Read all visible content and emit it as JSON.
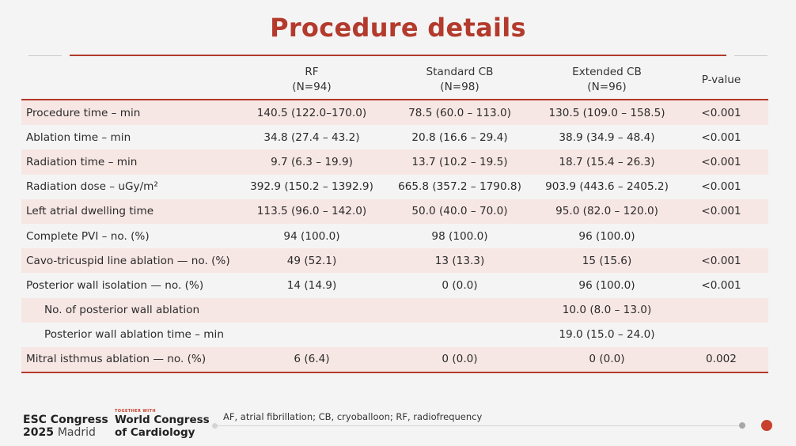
{
  "slide": {
    "title": "Procedure details",
    "footnote": "AF, atrial fibrillation; CB, cryoballoon; RF, radiofrequency"
  },
  "table": {
    "headers": [
      {
        "name": "RF",
        "n": "(N=94)"
      },
      {
        "name": "Standard CB",
        "n": "(N=98)"
      },
      {
        "name": "Extended CB",
        "n": "(N=96)"
      },
      {
        "name": "P-value",
        "n": ""
      }
    ],
    "rows": [
      {
        "label": "Procedure time – min",
        "values": [
          "140.5 (122.0–170.0)",
          "78.5 (60.0 – 113.0)",
          "130.5 (109.0 – 158.5)",
          "<0.001"
        ]
      },
      {
        "label": "Ablation time – min",
        "values": [
          "34.8 (27.4 – 43.2)",
          "20.8 (16.6 – 29.4)",
          "38.9 (34.9 – 48.4)",
          "<0.001"
        ]
      },
      {
        "label": "Radiation time – min",
        "values": [
          "9.7 (6.3 – 19.9)",
          "13.7 (10.2 – 19.5)",
          "18.7 (15.4 – 26.3)",
          "<0.001"
        ]
      },
      {
        "label": "Radiation dose – uGy/m²",
        "values": [
          "392.9 (150.2 – 1392.9)",
          "665.8 (357.2 – 1790.8)",
          "903.9 (443.6 – 2405.2)",
          "<0.001"
        ]
      },
      {
        "label": "Left atrial dwelling time",
        "values": [
          "113.5 (96.0 – 142.0)",
          "50.0 (40.0 – 70.0)",
          "95.0 (82.0 – 120.0)",
          "<0.001"
        ]
      },
      {
        "label": "Complete PVI – no. (%)",
        "values": [
          "94 (100.0)",
          "98 (100.0)",
          "96 (100.0)",
          ""
        ]
      },
      {
        "label": "Cavo-tricuspid line ablation — no. (%)",
        "values": [
          "49 (52.1)",
          "13 (13.3)",
          "15 (15.6)",
          "<0.001"
        ]
      },
      {
        "label": "Posterior wall isolation — no. (%)",
        "values": [
          "14 (14.9)",
          "0 (0.0)",
          "96 (100.0)",
          "<0.001"
        ]
      },
      {
        "label": "No. of posterior wall ablation",
        "values": [
          "",
          "",
          "10.0 (8.0 – 13.0)",
          ""
        ]
      },
      {
        "label": "Posterior wall ablation time – min",
        "values": [
          "",
          "",
          "19.0 (15.0 – 24.0)",
          ""
        ]
      },
      {
        "label": "Mitral isthmus ablation — no. (%)",
        "values": [
          "6 (6.4)",
          "0 (0.0)",
          "0 (0.0)",
          "0.002"
        ]
      }
    ]
  },
  "logo": {
    "esc_line1": "ESC Congress",
    "esc_year": "2025",
    "esc_city": "Madrid",
    "together_with": "TOGETHER WITH",
    "wc_line1": "World Congress",
    "wc_line2": "of Cardiology"
  },
  "colors": {
    "accent": "#b33a2c",
    "row_shade": "#f7e7e4",
    "background": "#f4f4f4"
  }
}
